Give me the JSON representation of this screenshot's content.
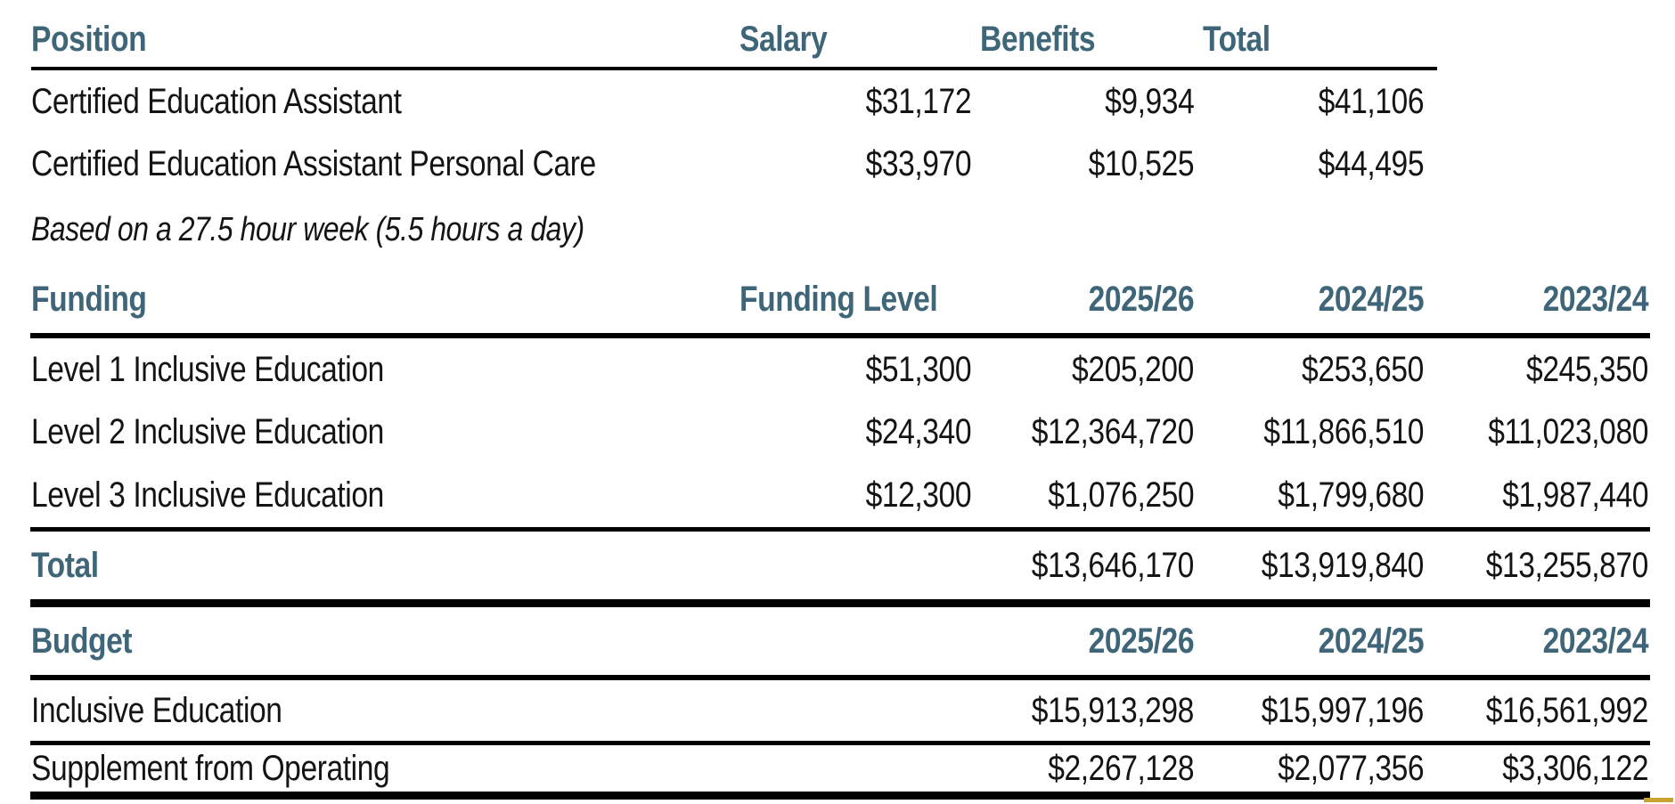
{
  "colors": {
    "header_teal": "#3f6678",
    "body_text": "#141414",
    "rule_black": "#000000",
    "accent_gold": "#c9a232",
    "background": "#ffffff"
  },
  "positions": {
    "headers": {
      "position": "Position",
      "salary": "Salary",
      "benefits": "Benefits",
      "total": "Total"
    },
    "rows": [
      {
        "label": "Certified Education Assistant",
        "salary": "$31,172",
        "benefits": "$9,934",
        "total": "$41,106"
      },
      {
        "label": "Certified Education Assistant Personal Care",
        "salary": "$33,970",
        "benefits": "$10,525",
        "total": "$44,495"
      }
    ],
    "note": "Based on a 27.5 hour week (5.5 hours a day)"
  },
  "funding": {
    "headers": {
      "funding": "Funding",
      "funding_level": "Funding Level",
      "y1": "2025/26",
      "y2": "2024/25",
      "y3": "2023/24"
    },
    "rows": [
      {
        "label": "Level 1 Inclusive Education",
        "funding_level": "$51,300",
        "y1": "$205,200",
        "y2": "$253,650",
        "y3": "$245,350"
      },
      {
        "label": "Level 2 Inclusive Education",
        "funding_level": "$24,340",
        "y1": "$12,364,720",
        "y2": "$11,866,510",
        "y3": "$11,023,080"
      },
      {
        "label": "Level 3 Inclusive Education",
        "funding_level": "$12,300",
        "y1": "$1,076,250",
        "y2": "$1,799,680",
        "y3": "$1,987,440"
      }
    ],
    "total_row": {
      "label": "Total",
      "y1": "$13,646,170",
      "y2": "$13,919,840",
      "y3": "$13,255,870"
    }
  },
  "budget": {
    "headers": {
      "budget": "Budget",
      "y1": "2025/26",
      "y2": "2024/25",
      "y3": "2023/24"
    },
    "rows": [
      {
        "label": "Inclusive Education",
        "y1": "$15,913,298",
        "y2": "$15,997,196",
        "y3": "$16,561,992"
      },
      {
        "label": "Supplement from Operating",
        "y1": "$2,267,128",
        "y2": "$2,077,356",
        "y3": "$3,306,122"
      }
    ]
  }
}
